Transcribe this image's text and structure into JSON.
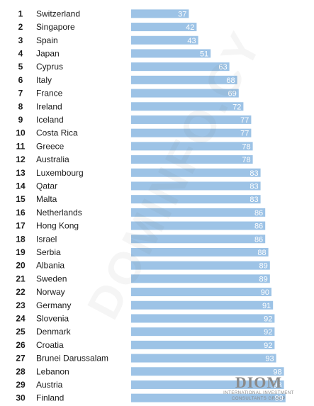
{
  "chart_data": {
    "type": "bar",
    "orientation": "horizontal",
    "bar_color": "#9dc3e6",
    "label_color": "#ffffff",
    "xlim": [
      0,
      110
    ],
    "grid": false,
    "rows": [
      {
        "rank": "1",
        "country": "Switzerland",
        "value": 37
      },
      {
        "rank": "2",
        "country": "Singapore",
        "value": 42
      },
      {
        "rank": "3",
        "country": "Spain",
        "value": 43
      },
      {
        "rank": "4",
        "country": "Japan",
        "value": 51
      },
      {
        "rank": "5",
        "country": "Cyprus",
        "value": 63
      },
      {
        "rank": "6",
        "country": "Italy",
        "value": 68
      },
      {
        "rank": "7",
        "country": "France",
        "value": 69
      },
      {
        "rank": "8",
        "country": "Ireland",
        "value": 72
      },
      {
        "rank": "9",
        "country": "Iceland",
        "value": 77
      },
      {
        "rank": "10",
        "country": "Costa Rica",
        "value": 77
      },
      {
        "rank": "11",
        "country": "Greece",
        "value": 78
      },
      {
        "rank": "12",
        "country": "Australia",
        "value": 78
      },
      {
        "rank": "13",
        "country": "Luxembourg",
        "value": 83
      },
      {
        "rank": "14",
        "country": "Qatar",
        "value": 83
      },
      {
        "rank": "15",
        "country": "Malta",
        "value": 83
      },
      {
        "rank": "16",
        "country": "Netherlands",
        "value": 86
      },
      {
        "rank": "17",
        "country": "Hong Kong",
        "value": 86
      },
      {
        "rank": "18",
        "country": "Israel",
        "value": 86
      },
      {
        "rank": "19",
        "country": "Serbia",
        "value": 88
      },
      {
        "rank": "20",
        "country": "Albania",
        "value": 89
      },
      {
        "rank": "21",
        "country": "Sweden",
        "value": 89
      },
      {
        "rank": "22",
        "country": "Norway",
        "value": 90
      },
      {
        "rank": "23",
        "country": "Germany",
        "value": 91
      },
      {
        "rank": "24",
        "country": "Slovenia",
        "value": 92
      },
      {
        "rank": "25",
        "country": "Denmark",
        "value": 92
      },
      {
        "rank": "26",
        "country": "Croatia",
        "value": 92
      },
      {
        "rank": "27",
        "country": "Brunei Darussalam",
        "value": 93
      },
      {
        "rank": "28",
        "country": "Lebanon",
        "value": 98
      },
      {
        "rank": "29",
        "country": "Austria",
        "value": 98
      },
      {
        "rank": "30",
        "country": "Finland",
        "value": 99
      }
    ]
  },
  "watermark": {
    "text": "DOMINFO.CY"
  },
  "logo": {
    "main": "DIOM",
    "sub": "INTERNATIONAL INVESTMENT CONSULTANTS GROUP"
  }
}
